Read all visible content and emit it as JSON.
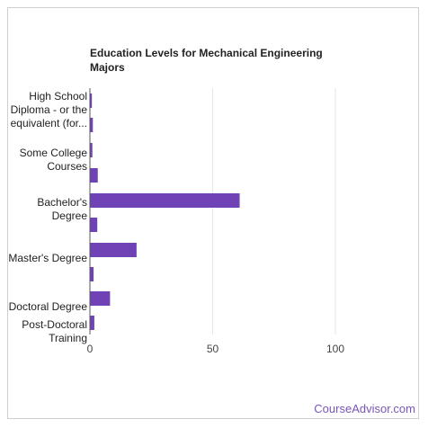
{
  "watermark": "CourseAdvisor.com",
  "colors": {
    "bar": "#6f42b5",
    "gridline": "#e6e6e6",
    "axis": "#555555",
    "text": "#222222",
    "watermark": "#7a55b8"
  },
  "chart_data": {
    "type": "bar",
    "orientation": "horizontal",
    "title_lines": [
      "Education Levels for Mechanical Engineering",
      "Majors"
    ],
    "xlabel": "",
    "ylabel": "",
    "xlim": [
      0,
      130
    ],
    "xticks": [
      0,
      50,
      100
    ],
    "grid": true,
    "legend": "none",
    "bars": [
      {
        "value": 0.8
      },
      {
        "value": 1.2
      },
      {
        "value": 1.0
      },
      {
        "value": 3.2
      },
      {
        "value": 61.0
      },
      {
        "value": 3.0
      },
      {
        "value": 19.0
      },
      {
        "value": 1.5
      },
      {
        "value": 8.2
      },
      {
        "value": 1.8
      }
    ],
    "category_labels": [
      {
        "lines": [
          "High School",
          "Diploma - or the",
          "equivalent (for..."
        ]
      },
      {
        "lines": [
          "Some College",
          "Courses"
        ]
      },
      {
        "lines": [
          "Bachelor's",
          "Degree"
        ]
      },
      {
        "lines": [
          "Master's Degree"
        ]
      },
      {
        "lines": [
          "Doctoral Degree"
        ]
      },
      {
        "lines": [
          "Post-Doctoral",
          "Training"
        ]
      }
    ]
  }
}
